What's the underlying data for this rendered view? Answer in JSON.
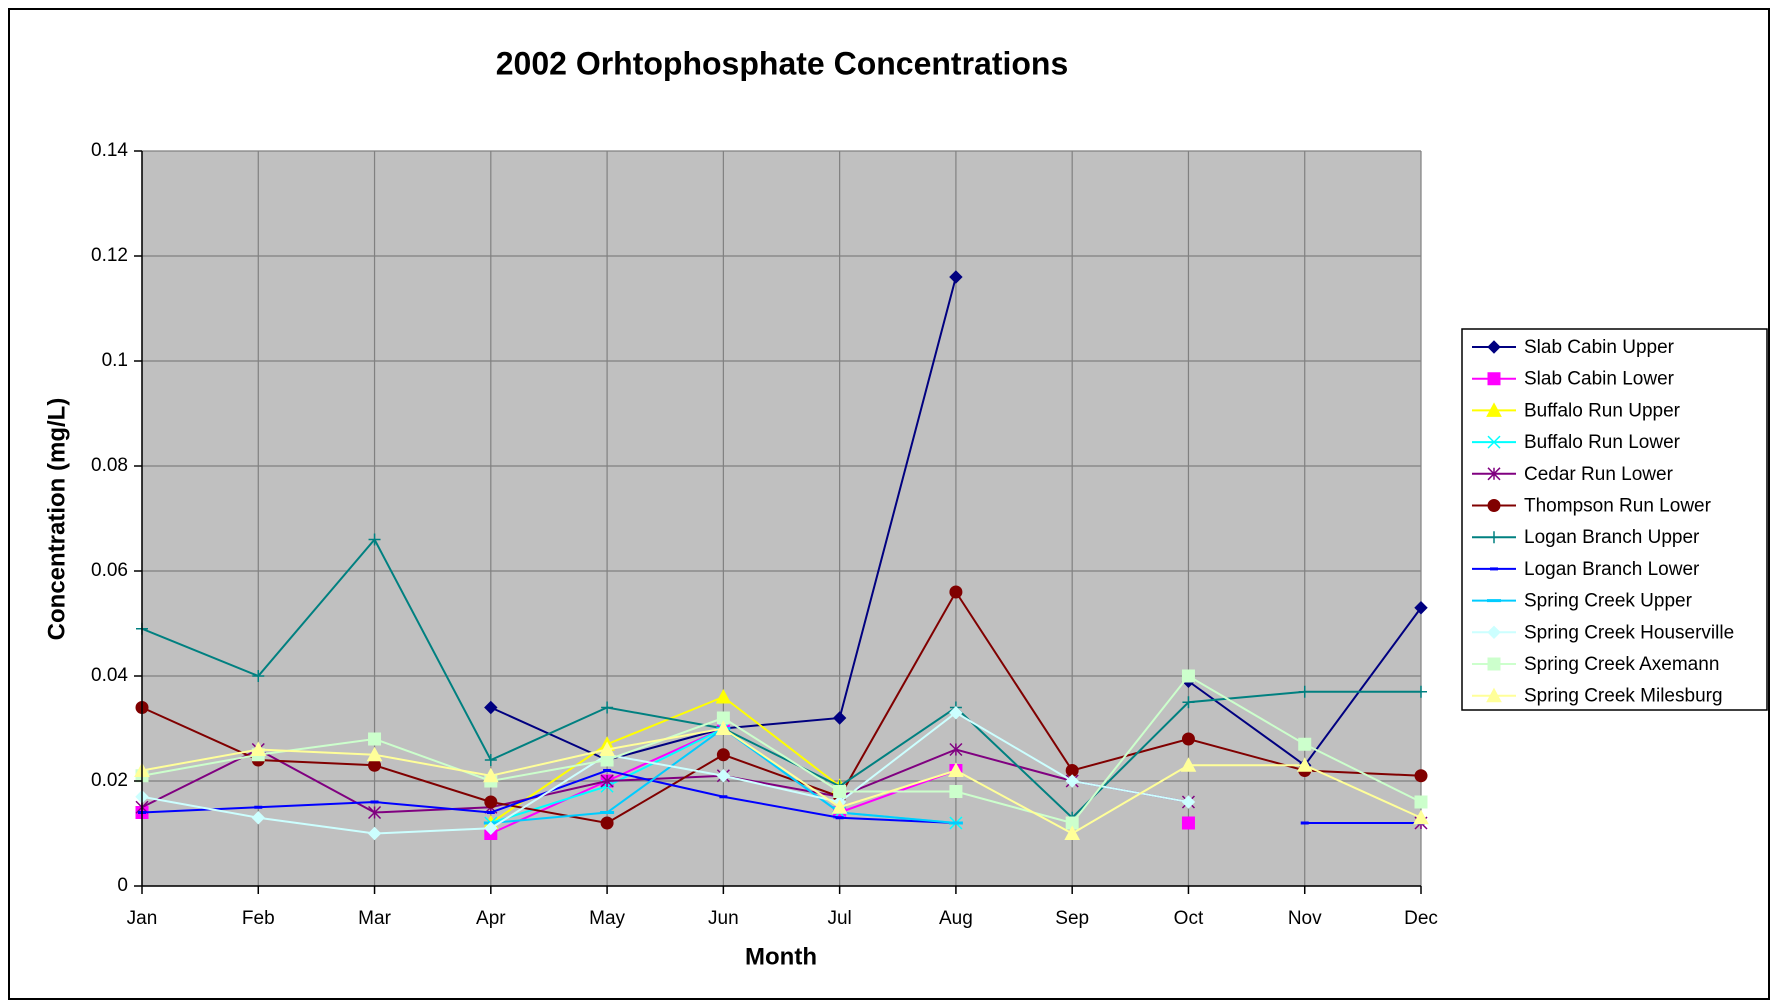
{
  "chart_data": {
    "type": "line",
    "title": "2002 Orhtophosphate Concentrations",
    "x_label": "Month",
    "y_label": "Concentration (mg/L)",
    "categories": [
      "Jan",
      "Feb",
      "Mar",
      "Apr",
      "May",
      "Jun",
      "Jul",
      "Aug",
      "Sep",
      "Oct",
      "Nov",
      "Dec"
    ],
    "ylim": [
      0,
      0.14
    ],
    "yticks": [
      0,
      0.02,
      0.04,
      0.06,
      0.08,
      0.1,
      0.12,
      0.14
    ],
    "grid": true,
    "legend": "right",
    "series": [
      {
        "name": "Slab Cabin Upper",
        "color": "#000080",
        "marker": "diamond",
        "values": [
          null,
          null,
          null,
          0.034,
          0.024,
          0.03,
          0.032,
          0.116,
          null,
          0.039,
          0.023,
          0.053
        ]
      },
      {
        "name": "Slab Cabin Lower",
        "color": "#ff00ff",
        "marker": "square",
        "values": [
          0.014,
          null,
          null,
          0.01,
          0.02,
          0.03,
          0.014,
          0.022,
          null,
          0.012,
          null,
          null
        ]
      },
      {
        "name": "Buffalo Run Upper",
        "color": "#ffff00",
        "marker": "triangle",
        "values": [
          null,
          null,
          null,
          0.012,
          0.027,
          0.036,
          0.019,
          null,
          null,
          null,
          null,
          null
        ]
      },
      {
        "name": "Buffalo Run Lower",
        "color": "#00ffff",
        "marker": "x",
        "values": [
          null,
          null,
          null,
          0.012,
          0.019,
          0.03,
          0.014,
          0.012,
          null,
          null,
          null,
          null
        ]
      },
      {
        "name": "Cedar Run Lower",
        "color": "#800080",
        "marker": "star",
        "values": [
          0.015,
          0.026,
          0.014,
          0.015,
          0.02,
          0.021,
          0.017,
          0.026,
          0.02,
          0.016,
          null,
          0.012
        ]
      },
      {
        "name": "Thompson Run Lower",
        "color": "#800000",
        "marker": "circle",
        "values": [
          0.034,
          0.024,
          0.023,
          0.016,
          0.012,
          0.025,
          0.017,
          0.056,
          0.022,
          0.028,
          0.022,
          0.021
        ]
      },
      {
        "name": "Logan Branch Upper",
        "color": "#008080",
        "marker": "plus",
        "values": [
          0.049,
          0.04,
          0.066,
          0.024,
          0.034,
          0.03,
          0.019,
          0.034,
          0.013,
          0.035,
          0.037,
          0.037
        ]
      },
      {
        "name": "Logan Branch Lower",
        "color": "#0000ff",
        "marker": "dash",
        "values": [
          0.014,
          0.015,
          0.016,
          0.014,
          0.022,
          0.017,
          0.013,
          0.012,
          null,
          null,
          0.012,
          0.012
        ]
      },
      {
        "name": "Spring Creek Upper",
        "color": "#00ccff",
        "marker": "longdash",
        "values": [
          null,
          null,
          null,
          0.012,
          0.014,
          0.03,
          0.014,
          0.012,
          null,
          null,
          null,
          null
        ]
      },
      {
        "name": "Spring Creek Houserville",
        "color": "#ccffff",
        "marker": "diamond",
        "values": [
          0.017,
          0.013,
          0.01,
          0.011,
          0.025,
          0.021,
          0.016,
          0.033,
          0.02,
          0.016,
          null,
          null
        ]
      },
      {
        "name": "Spring Creek Axemann",
        "color": "#ccffcc",
        "marker": "square",
        "values": [
          0.021,
          0.025,
          0.028,
          0.02,
          0.024,
          0.032,
          0.018,
          0.018,
          0.012,
          0.04,
          0.027,
          0.016
        ]
      },
      {
        "name": "Spring Creek Milesburg",
        "color": "#ffff99",
        "marker": "triangle",
        "values": [
          0.022,
          0.026,
          0.025,
          0.021,
          0.026,
          0.03,
          0.015,
          0.022,
          0.01,
          0.023,
          0.023,
          0.013
        ]
      }
    ]
  }
}
